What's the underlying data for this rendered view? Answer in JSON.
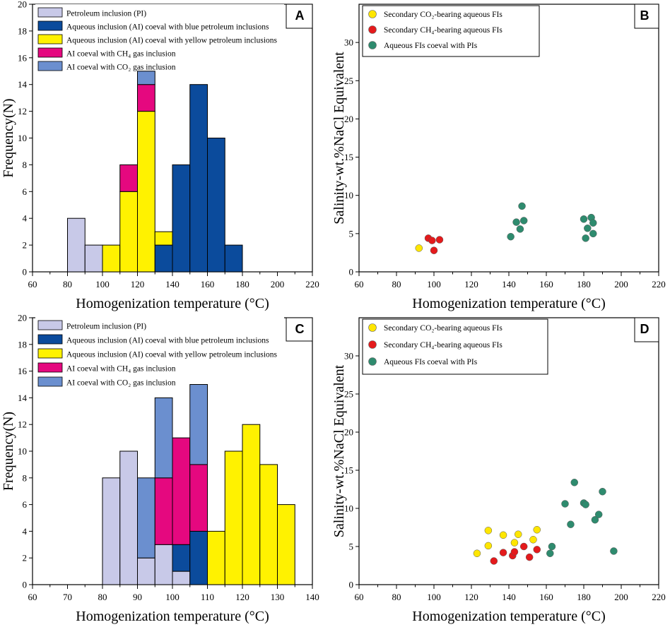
{
  "colors": {
    "PI": "#c8c9e8",
    "AI_blue": "#0b4b9c",
    "AI_yellow": "#fff200",
    "CH4": "#e5087f",
    "CO2": "#6b8fcf",
    "co2_dot": "#ffe600",
    "ch4_dot": "#e41a1c",
    "pi_dot": "#2e8b6e"
  },
  "chart_data": [
    {
      "id": "A",
      "type": "bar",
      "stacked": true,
      "label": "A",
      "xlabel": "Homogenization temperature (°C)",
      "ylabel": "Frequency(N)",
      "xlim": [
        60,
        220
      ],
      "xticks": [
        60,
        80,
        100,
        120,
        140,
        160,
        180,
        200,
        220
      ],
      "ylim": [
        0,
        20
      ],
      "yticks": [
        0,
        2,
        4,
        6,
        8,
        10,
        12,
        14,
        16,
        18,
        20
      ],
      "legend": [
        {
          "label": "Petroleum inclusion (PI)",
          "color_key": "PI"
        },
        {
          "label": "Aqueous inclusion (AI) coeval with blue petroleum inclusions",
          "color_key": "AI_blue"
        },
        {
          "label": "Aqueous inclusion (AI) coeval with yellow petroleum inclusions",
          "color_key": "AI_yellow"
        },
        {
          "label": "AI coeval with  CH₄ gas inclusion",
          "color_key": "CH4"
        },
        {
          "label": "AI coeval with CO₂ gas inclusion",
          "color_key": "CO2"
        }
      ],
      "bins": [
        {
          "x0": 80,
          "x1": 90,
          "stack": [
            {
              "s": "PI",
              "v": 4
            }
          ]
        },
        {
          "x0": 90,
          "x1": 100,
          "stack": [
            {
              "s": "PI",
              "v": 2
            }
          ]
        },
        {
          "x0": 100,
          "x1": 110,
          "stack": [
            {
              "s": "AI_yellow",
              "v": 2
            }
          ]
        },
        {
          "x0": 110,
          "x1": 120,
          "stack": [
            {
              "s": "AI_yellow",
              "v": 6
            },
            {
              "s": "CH4",
              "v": 2
            }
          ]
        },
        {
          "x0": 120,
          "x1": 130,
          "stack": [
            {
              "s": "AI_yellow",
              "v": 12
            },
            {
              "s": "CH4",
              "v": 2
            },
            {
              "s": "CO2",
              "v": 1
            }
          ]
        },
        {
          "x0": 130,
          "x1": 140,
          "stack": [
            {
              "s": "AI_blue",
              "v": 2
            },
            {
              "s": "AI_yellow",
              "v": 1
            }
          ]
        },
        {
          "x0": 140,
          "x1": 150,
          "stack": [
            {
              "s": "AI_blue",
              "v": 8
            }
          ]
        },
        {
          "x0": 150,
          "x1": 160,
          "stack": [
            {
              "s": "AI_blue",
              "v": 14
            }
          ]
        },
        {
          "x0": 160,
          "x1": 170,
          "stack": [
            {
              "s": "AI_blue",
              "v": 10
            }
          ]
        },
        {
          "x0": 170,
          "x1": 180,
          "stack": [
            {
              "s": "AI_blue",
              "v": 2
            }
          ]
        }
      ]
    },
    {
      "id": "B",
      "type": "scatter",
      "label": "B",
      "xlabel": "Homogenization temperature (°C)",
      "ylabel": "Salinity-wt.%NaCl Equivalent",
      "xlim": [
        60,
        220
      ],
      "xticks": [
        60,
        80,
        100,
        120,
        140,
        160,
        180,
        200,
        220
      ],
      "ylim": [
        0,
        35
      ],
      "yticks": [
        0,
        5,
        10,
        15,
        20,
        25,
        30
      ],
      "legend": [
        {
          "label": "Secondary CO₂-bearing aqueous FIs",
          "color_key": "co2_dot"
        },
        {
          "label": "Secondary CH₄-bearing aqueous FIs",
          "color_key": "ch4_dot"
        },
        {
          "label": "Aqueous FIs coeval with PIs",
          "color_key": "pi_dot"
        }
      ],
      "series": [
        {
          "name": "CO2",
          "color_key": "co2_dot",
          "points": [
            [
              92,
              3.1
            ]
          ]
        },
        {
          "name": "CH4",
          "color_key": "ch4_dot",
          "points": [
            [
              97,
              4.4
            ],
            [
              99,
              4.1
            ],
            [
              100,
              2.8
            ],
            [
              103,
              4.2
            ]
          ]
        },
        {
          "name": "PI",
          "color_key": "pi_dot",
          "points": [
            [
              141,
              4.6
            ],
            [
              144,
              6.5
            ],
            [
              146,
              5.6
            ],
            [
              147,
              8.6
            ],
            [
              148,
              6.7
            ],
            [
              180,
              6.9
            ],
            [
              181,
              4.4
            ],
            [
              182,
              5.7
            ],
            [
              184,
              7.1
            ],
            [
              185,
              6.4
            ],
            [
              185,
              5.0
            ]
          ]
        }
      ]
    },
    {
      "id": "C",
      "type": "bar",
      "stacked": true,
      "label": "C",
      "xlabel": "Homogenization temperature (°C)",
      "ylabel": "Frequency(N)",
      "xlim": [
        60,
        140
      ],
      "xticks": [
        60,
        70,
        80,
        90,
        100,
        110,
        120,
        130,
        140
      ],
      "ylim": [
        0,
        20
      ],
      "yticks": [
        0,
        2,
        4,
        6,
        8,
        10,
        12,
        14,
        16,
        18,
        20
      ],
      "legend": [
        {
          "label": "Petroleum inclusion (PI)",
          "color_key": "PI"
        },
        {
          "label": "Aqueous inclusion (AI) coeval with blue petroleum inclusions",
          "color_key": "AI_blue"
        },
        {
          "label": "Aqueous inclusion (AI) coeval with yellow petroleum inclusions",
          "color_key": "AI_yellow"
        },
        {
          "label": "AI coeval with  CH₄ gas inclusion",
          "color_key": "CH4"
        },
        {
          "label": "AI coeval with CO₂ gas inclusion",
          "color_key": "CO2"
        }
      ],
      "bins": [
        {
          "x0": 80,
          "x1": 85,
          "stack": [
            {
              "s": "PI",
              "v": 8
            }
          ]
        },
        {
          "x0": 85,
          "x1": 90,
          "stack": [
            {
              "s": "PI",
              "v": 10
            }
          ]
        },
        {
          "x0": 90,
          "x1": 95,
          "stack": [
            {
              "s": "PI",
              "v": 2
            },
            {
              "s": "CO2",
              "v": 6
            }
          ]
        },
        {
          "x0": 95,
          "x1": 100,
          "stack": [
            {
              "s": "PI",
              "v": 3
            },
            {
              "s": "CH4",
              "v": 5
            },
            {
              "s": "CO2",
              "v": 6
            }
          ]
        },
        {
          "x0": 100,
          "x1": 105,
          "stack": [
            {
              "s": "PI",
              "v": 1
            },
            {
              "s": "AI_blue",
              "v": 2
            },
            {
              "s": "CH4",
              "v": 8
            }
          ]
        },
        {
          "x0": 105,
          "x1": 110,
          "stack": [
            {
              "s": "AI_blue",
              "v": 4
            },
            {
              "s": "CH4",
              "v": 5
            },
            {
              "s": "CO2",
              "v": 6
            }
          ]
        },
        {
          "x0": 110,
          "x1": 115,
          "stack": [
            {
              "s": "AI_yellow",
              "v": 4
            }
          ]
        },
        {
          "x0": 115,
          "x1": 120,
          "stack": [
            {
              "s": "AI_yellow",
              "v": 10
            }
          ]
        },
        {
          "x0": 120,
          "x1": 125,
          "stack": [
            {
              "s": "AI_yellow",
              "v": 12
            }
          ]
        },
        {
          "x0": 125,
          "x1": 130,
          "stack": [
            {
              "s": "AI_yellow",
              "v": 9
            }
          ]
        },
        {
          "x0": 130,
          "x1": 135,
          "stack": [
            {
              "s": "AI_yellow",
              "v": 6
            }
          ]
        }
      ]
    },
    {
      "id": "D",
      "type": "scatter",
      "label": "D",
      "xlabel": "Homogenization temperature (°C)",
      "ylabel": "Salinity-wt.%NaCl Equivalent",
      "xlim": [
        60,
        220
      ],
      "xticks": [
        60,
        80,
        100,
        120,
        140,
        160,
        180,
        200,
        220
      ],
      "ylim": [
        0,
        35
      ],
      "yticks": [
        0,
        5,
        10,
        15,
        20,
        25,
        30
      ],
      "legend": [
        {
          "label": "Secondary CO₂-bearing aqueous FIs",
          "color_key": "co2_dot"
        },
        {
          "label": "Secondary CH₄-bearing aqueous FIs",
          "color_key": "ch4_dot"
        },
        {
          "label": "Aqueous FIs coeval with PIs",
          "color_key": "pi_dot"
        }
      ],
      "series": [
        {
          "name": "CO2",
          "color_key": "co2_dot",
          "points": [
            [
              123,
              4.1
            ],
            [
              129,
              7.1
            ],
            [
              129,
              5.1
            ],
            [
              137,
              6.5
            ],
            [
              143,
              5.5
            ],
            [
              145,
              6.6
            ],
            [
              153,
              5.9
            ],
            [
              155,
              7.2
            ]
          ]
        },
        {
          "name": "CH4",
          "color_key": "ch4_dot",
          "points": [
            [
              132,
              3.1
            ],
            [
              137,
              4.2
            ],
            [
              142,
              3.8
            ],
            [
              143,
              4.3
            ],
            [
              148,
              5.0
            ],
            [
              151,
              3.6
            ],
            [
              155,
              4.6
            ]
          ]
        },
        {
          "name": "PI",
          "color_key": "pi_dot",
          "points": [
            [
              162,
              4.1
            ],
            [
              163,
              5.0
            ],
            [
              170,
              10.6
            ],
            [
              173,
              7.9
            ],
            [
              175,
              13.4
            ],
            [
              180,
              10.7
            ],
            [
              181,
              10.5
            ],
            [
              186,
              8.5
            ],
            [
              188,
              9.2
            ],
            [
              190,
              12.2
            ],
            [
              196,
              4.4
            ]
          ]
        }
      ]
    }
  ]
}
